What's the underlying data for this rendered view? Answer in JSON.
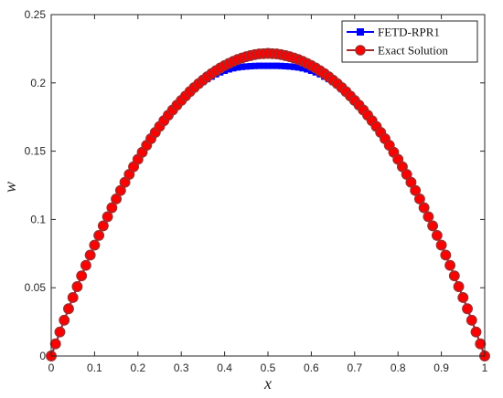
{
  "chart_data": {
    "type": "line",
    "title": "",
    "xlabel": "x",
    "ylabel": "w",
    "xlim": [
      0,
      1
    ],
    "ylim": [
      0,
      0.25
    ],
    "x_ticks": [
      0,
      0.1,
      0.2,
      0.3,
      0.4,
      0.5,
      0.6,
      0.7,
      0.8,
      0.9,
      1
    ],
    "x_tick_labels": [
      "0",
      "0.1",
      "0.2",
      "0.3",
      "0.4",
      "0.5",
      "0.6",
      "0.7",
      "0.8",
      "0.9",
      "1"
    ],
    "y_ticks": [
      0,
      0.05,
      0.1,
      0.15,
      0.2,
      0.25
    ],
    "y_tick_labels": [
      "0",
      "0.05",
      "0.1",
      "0.15",
      "0.2",
      "0.25"
    ],
    "grid": false,
    "legend_position": "top-right",
    "x": [
      0,
      0.01,
      0.02,
      0.03,
      0.04,
      0.05,
      0.06,
      0.07,
      0.08,
      0.09,
      0.1,
      0.11,
      0.12,
      0.13,
      0.14,
      0.15,
      0.16,
      0.17,
      0.18,
      0.19,
      0.2,
      0.21,
      0.22,
      0.23,
      0.24,
      0.25,
      0.26,
      0.27,
      0.28,
      0.29,
      0.3,
      0.31,
      0.32,
      0.33,
      0.34,
      0.35,
      0.36,
      0.37,
      0.38,
      0.39,
      0.4,
      0.41,
      0.42,
      0.43,
      0.44,
      0.45,
      0.46,
      0.47,
      0.48,
      0.49,
      0.5,
      0.51,
      0.52,
      0.53,
      0.54,
      0.55,
      0.56,
      0.57,
      0.58,
      0.59,
      0.6,
      0.61,
      0.62,
      0.63,
      0.64,
      0.65,
      0.66,
      0.67,
      0.68,
      0.69,
      0.7,
      0.71,
      0.72,
      0.73,
      0.74,
      0.75,
      0.76,
      0.77,
      0.78,
      0.79,
      0.8,
      0.81,
      0.82,
      0.83,
      0.84,
      0.85,
      0.86,
      0.87,
      0.88,
      0.89,
      0.9,
      0.91,
      0.92,
      0.93,
      0.94,
      0.95,
      0.96,
      0.97,
      0.98,
      0.99,
      1
    ],
    "series": [
      {
        "name": "FETD-RPR1",
        "color": "#0000ff",
        "marker": "filled-square",
        "values": [
          0,
          0.0089,
          0.0176,
          0.0262,
          0.0346,
          0.0428,
          0.0508,
          0.0587,
          0.0664,
          0.0739,
          0.0812,
          0.0883,
          0.0953,
          0.102,
          0.1086,
          0.115,
          0.1212,
          0.1272,
          0.133,
          0.1386,
          0.144,
          0.1492,
          0.1543,
          0.1591,
          0.1637,
          0.1681,
          0.1723,
          0.1763,
          0.1801,
          0.1837,
          0.1871,
          0.1902,
          0.1932,
          0.1959,
          0.1984,
          0.2007,
          0.2028,
          0.2046,
          0.2063,
          0.2077,
          0.2089,
          0.2099,
          0.2107,
          0.2113,
          0.2117,
          0.212,
          0.2122,
          0.2124,
          0.2125,
          0.2125,
          0.2125,
          0.2125,
          0.2125,
          0.2124,
          0.2122,
          0.212,
          0.2117,
          0.2113,
          0.2107,
          0.2099,
          0.2089,
          0.2077,
          0.2063,
          0.2046,
          0.2028,
          0.2007,
          0.1984,
          0.1959,
          0.1932,
          0.1902,
          0.1871,
          0.1837,
          0.1801,
          0.1763,
          0.1723,
          0.1681,
          0.1637,
          0.1591,
          0.1543,
          0.1492,
          0.144,
          0.1386,
          0.133,
          0.1272,
          0.1212,
          0.115,
          0.1086,
          0.102,
          0.0953,
          0.0883,
          0.0812,
          0.0739,
          0.0664,
          0.0587,
          0.0508,
          0.0428,
          0.0346,
          0.0262,
          0.0176,
          0.0089,
          0
        ]
      },
      {
        "name": "Exact Solution",
        "color": "#a52a2a",
        "marker_fill": "#ff0000",
        "marker": "circle",
        "values": [
          0,
          0.0089,
          0.0176,
          0.0262,
          0.0346,
          0.0428,
          0.0508,
          0.0587,
          0.0664,
          0.0739,
          0.0812,
          0.0883,
          0.0953,
          0.102,
          0.1086,
          0.115,
          0.1212,
          0.1272,
          0.133,
          0.1386,
          0.144,
          0.1492,
          0.1543,
          0.1591,
          0.1637,
          0.1681,
          0.1723,
          0.1763,
          0.1801,
          0.1837,
          0.1871,
          0.1904,
          0.1936,
          0.1966,
          0.1994,
          0.202,
          0.2045,
          0.2068,
          0.2089,
          0.2109,
          0.2127,
          0.2143,
          0.2158,
          0.2171,
          0.2182,
          0.2192,
          0.22,
          0.2207,
          0.2212,
          0.2214,
          0.2216,
          0.2214,
          0.2212,
          0.2207,
          0.22,
          0.2192,
          0.2182,
          0.2171,
          0.2158,
          0.2143,
          0.2127,
          0.2109,
          0.2089,
          0.2068,
          0.2045,
          0.202,
          0.1994,
          0.1966,
          0.1936,
          0.1904,
          0.1871,
          0.1837,
          0.1801,
          0.1763,
          0.1723,
          0.1681,
          0.1637,
          0.1591,
          0.1543,
          0.1492,
          0.144,
          0.1386,
          0.133,
          0.1272,
          0.1212,
          0.115,
          0.1086,
          0.102,
          0.0953,
          0.0883,
          0.0812,
          0.0739,
          0.0664,
          0.0587,
          0.0508,
          0.0428,
          0.0346,
          0.0262,
          0.0176,
          0.0089,
          0
        ]
      }
    ]
  }
}
